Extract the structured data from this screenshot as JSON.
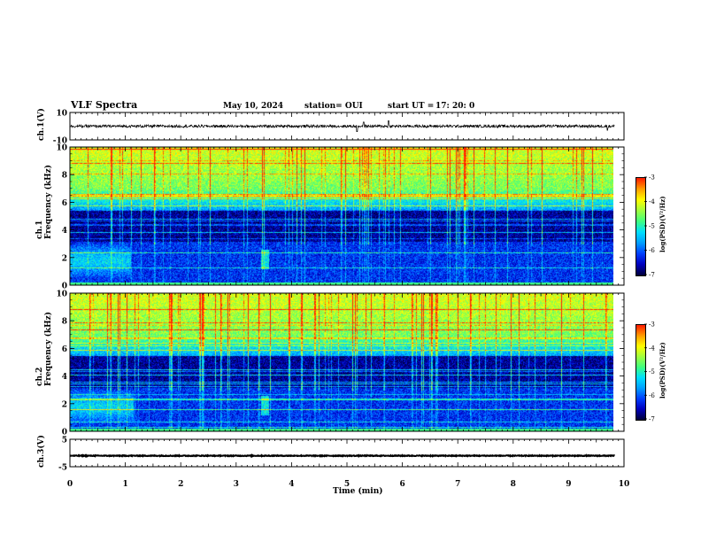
{
  "header": {
    "title": "VLF Spectra",
    "date": "May 10, 2024",
    "station": "station= OUI",
    "start_ut_label": "start  UT =",
    "start_ut_value": "17: 20: 0"
  },
  "chart_data": [
    {
      "type": "line",
      "name": "ch1-waveform",
      "ylabel": "ch.1(V)",
      "ylim": [
        -10,
        10
      ],
      "yticks": [
        "10",
        "-10"
      ],
      "level": 0,
      "amplitude": 2,
      "bursts": [
        {
          "x": 5.18,
          "y": -4
        },
        {
          "x": 5.3,
          "y": 3
        },
        {
          "x": 5.75,
          "y": 4
        },
        {
          "x": 9.7,
          "y": -3
        }
      ]
    },
    {
      "type": "heatmap",
      "name": "ch1-spectrogram",
      "ylabel": "ch.1\nFrequency (kHz)",
      "ylim": [
        0,
        10
      ],
      "yticks": [
        "0",
        "2",
        "4",
        "6",
        "8",
        "10"
      ],
      "colorbar": {
        "label": "log(PSD)(V²/Hz)",
        "range": [
          -7,
          -3
        ],
        "ticks": [
          "-3",
          "-4",
          "-5",
          "-6",
          "-7"
        ]
      }
    },
    {
      "type": "heatmap",
      "name": "ch2-spectrogram",
      "ylabel": "ch.2\nFrequency (kHz)",
      "ylim": [
        0,
        10
      ],
      "yticks": [
        "0",
        "2",
        "4",
        "6",
        "8",
        "10"
      ],
      "colorbar": {
        "label": "log(PSD)(V²/Hz)",
        "range": [
          -7,
          -3
        ],
        "ticks": [
          "-3",
          "-4",
          "-5",
          "-6",
          "-7"
        ]
      }
    },
    {
      "type": "line",
      "name": "ch3-waveform",
      "ylabel": "ch.3(V)",
      "ylim": [
        -5,
        5
      ],
      "yticks": [
        "5",
        "-5"
      ],
      "level": -1,
      "amplitude": 0.3
    }
  ],
  "x_axis": {
    "label": "Time  (min)",
    "range": [
      0,
      10
    ],
    "ticks": [
      "0",
      "1",
      "2",
      "3",
      "4",
      "5",
      "6",
      "7",
      "8",
      "9",
      "10"
    ],
    "data_end": 9.83
  },
  "colors": {
    "colormap": [
      "#000040",
      "#0000c0",
      "#0040ff",
      "#00a0ff",
      "#00e0ff",
      "#40ff80",
      "#a0ff40",
      "#ffff00",
      "#ffa000",
      "#ff2000",
      "#ffffff"
    ]
  }
}
